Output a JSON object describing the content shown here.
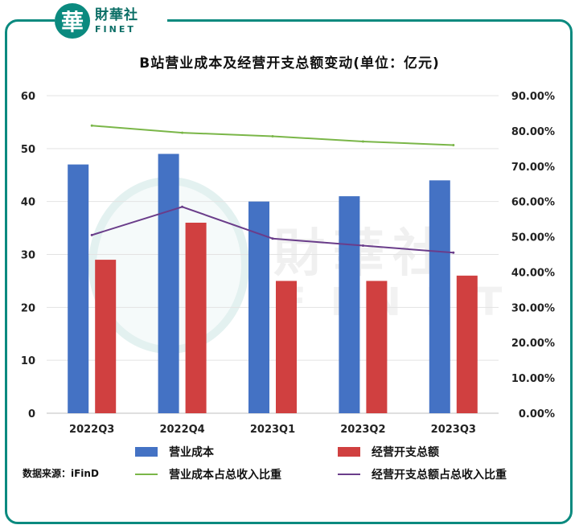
{
  "brand": {
    "mark": "華",
    "name_cn": "財華社",
    "name_en": "FINET"
  },
  "watermark": {
    "cn": "財華社",
    "en": "FINET"
  },
  "chart_data": {
    "type": "bar",
    "title": "B站营业成本及经营开支总额变动(单位：亿元)",
    "categories": [
      "2022Q3",
      "2022Q4",
      "2023Q1",
      "2023Q2",
      "2023Q3"
    ],
    "series": [
      {
        "name": "营业成本",
        "type": "bar",
        "axis": "left",
        "color": "#4472c4",
        "values": [
          47,
          49,
          40,
          41,
          44
        ]
      },
      {
        "name": "经营开支总额",
        "type": "bar",
        "axis": "left",
        "color": "#d04040",
        "values": [
          29,
          36,
          25,
          25,
          26
        ]
      },
      {
        "name": "营业成本占总收入比重",
        "type": "line",
        "axis": "right",
        "color": "#7ab648",
        "values": [
          81.5,
          79.5,
          78.5,
          77,
          76
        ]
      },
      {
        "name": "经营开支总额占总收入比重",
        "type": "line",
        "axis": "right",
        "color": "#6a3d8a",
        "values": [
          50.5,
          58.5,
          49.5,
          47.5,
          45.5
        ]
      }
    ],
    "left_axis": {
      "ylim": [
        0,
        60
      ],
      "ticks": [
        "0",
        "10",
        "20",
        "30",
        "40",
        "50",
        "60"
      ]
    },
    "right_axis": {
      "ylim": [
        0,
        90
      ],
      "ticks": [
        "0.00%",
        "10.00%",
        "20.00%",
        "30.00%",
        "40.00%",
        "50.00%",
        "60.00%",
        "70.00%",
        "80.00%",
        "90.00%"
      ]
    },
    "grid": true,
    "legend_position": "bottom"
  },
  "source": "数据来源：iFinD"
}
